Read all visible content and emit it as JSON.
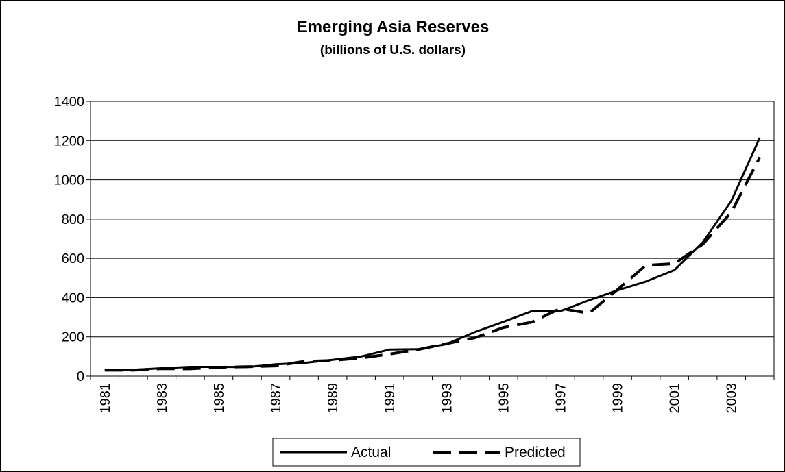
{
  "chart_data": {
    "type": "line",
    "title": "Emerging Asia Reserves",
    "subtitle": "(billions of U.S. dollars)",
    "xlabel": "",
    "ylabel": "",
    "ylim": [
      0,
      1400
    ],
    "yticks": [
      "0",
      "200",
      "400",
      "600",
      "800",
      "1000",
      "1200",
      "1400"
    ],
    "x": [
      1981,
      1982,
      1983,
      1984,
      1985,
      1986,
      1987,
      1988,
      1989,
      1990,
      1991,
      1992,
      1993,
      1994,
      1995,
      1996,
      1997,
      1998,
      1999,
      2000,
      2001,
      2002,
      2003,
      2004
    ],
    "xtick_labels": [
      "1981",
      "1983",
      "1985",
      "1987",
      "1989",
      "1991",
      "1993",
      "1995",
      "1997",
      "1999",
      "2001",
      "2003"
    ],
    "grid": "horizontal",
    "legend_position": "bottom",
    "series": [
      {
        "name": "Actual",
        "style": "solid",
        "color": "#000000",
        "values": [
          32,
          32,
          40,
          47,
          47,
          46,
          60,
          67,
          83,
          100,
          135,
          137,
          163,
          225,
          277,
          331,
          331,
          386,
          437,
          482,
          540,
          682,
          893,
          1215
        ]
      },
      {
        "name": "Predicted",
        "style": "dashed",
        "color": "#000000",
        "values": [
          30,
          30,
          38,
          37,
          45,
          48,
          52,
          75,
          80,
          92,
          112,
          135,
          165,
          195,
          248,
          275,
          345,
          320,
          440,
          565,
          573,
          672,
          835,
          1115
        ]
      }
    ]
  }
}
